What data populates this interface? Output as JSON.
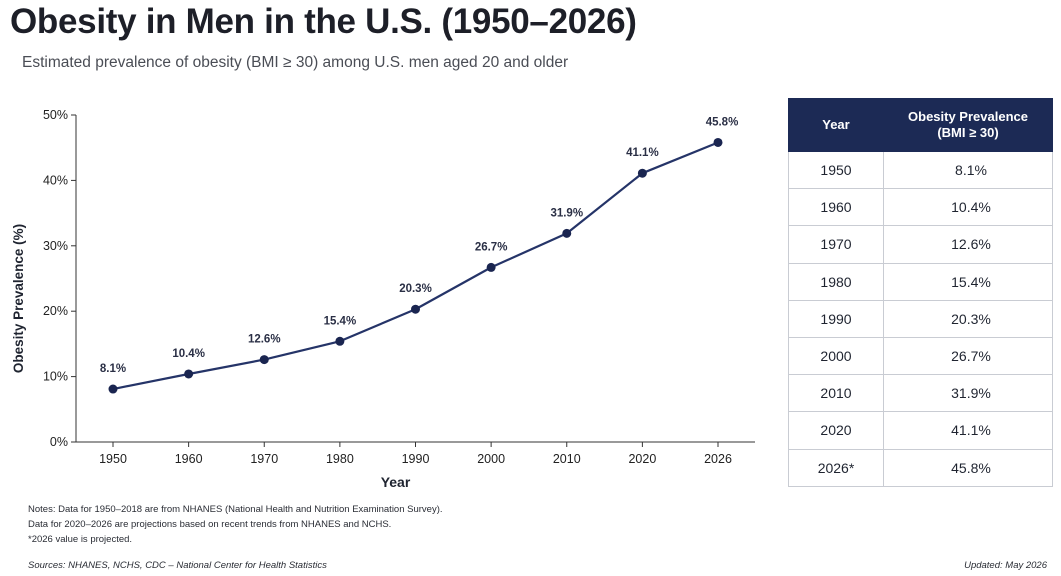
{
  "header": {
    "title": "Obesity in Men in the U.S. (1950–2026)",
    "subtitle": "Estimated prevalence of obesity (BMI ≥ 30) among U.S. men aged 20 and older"
  },
  "colors": {
    "line": "#253468",
    "marker": "#1a2550",
    "table_header_bg": "#1c2a55",
    "table_header_text": "#ffffff",
    "axis": "#333333"
  },
  "chart_data": {
    "type": "line",
    "categories": [
      "1950",
      "1960",
      "1970",
      "1980",
      "1990",
      "2000",
      "2010",
      "2020",
      "2026"
    ],
    "series": [
      {
        "values": [
          8.1,
          10.4,
          12.6,
          15.4,
          20.3,
          26.7,
          31.9,
          41.1,
          45.8
        ]
      }
    ],
    "point_labels": [
      "8.1%",
      "10.4%",
      "12.6%",
      "15.4%",
      "20.3%",
      "26.7%",
      "31.9%",
      "41.1%",
      "45.8%"
    ],
    "xlabel": "Year",
    "ylabel": "Obesity Prevalence (%)",
    "ylim": [
      0,
      50
    ],
    "yticks": [
      0,
      10,
      20,
      30,
      40,
      50
    ],
    "ytick_labels": [
      "0%",
      "10%",
      "20%",
      "30%",
      "40%",
      "50%"
    ],
    "grid": false,
    "legend": "none"
  },
  "table": {
    "headers": {
      "year": "Year",
      "prevalence_line1": "Obesity Prevalence",
      "prevalence_line2": "(BMI ≥ 30)"
    },
    "rows": [
      {
        "year": "1950",
        "value": "8.1%"
      },
      {
        "year": "1960",
        "value": "10.4%"
      },
      {
        "year": "1970",
        "value": "12.6%"
      },
      {
        "year": "1980",
        "value": "15.4%"
      },
      {
        "year": "1990",
        "value": "20.3%"
      },
      {
        "year": "2000",
        "value": "26.7%"
      },
      {
        "year": "2010",
        "value": "31.9%"
      },
      {
        "year": "2020",
        "value": "41.1%"
      },
      {
        "year": "2026*",
        "value": "45.8%"
      }
    ]
  },
  "notes": {
    "line1": "Notes: Data for 1950–2018 are from NHANES (National Health and Nutrition Examination Survey).",
    "line2": "Data for 2020–2026 are projections based on recent trends from NHANES and NCHS.",
    "line3": "*2026 value is projected.",
    "sources": "Sources: NHANES, NCHS, CDC – National Center for Health Statistics",
    "updated": "Updated: May 2026"
  }
}
